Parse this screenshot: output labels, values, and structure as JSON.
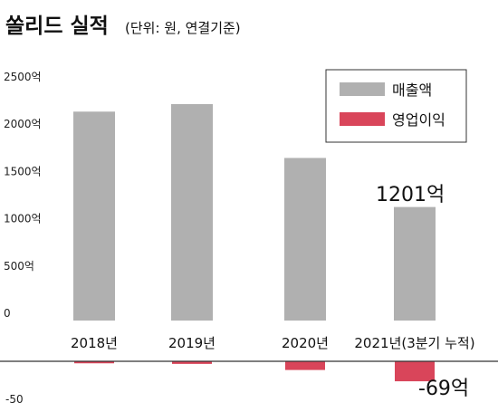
{
  "colors": {
    "sales": "#b0b0b0",
    "op": "#d9455a",
    "axis": "#333333"
  },
  "chart_data": {
    "type": "bar",
    "title": "쏠리드 실적",
    "subtitle": "(단위: 원, 연결기준)",
    "categories": [
      "2018년",
      "2019년",
      "2020년",
      "2021년(3분기 누적)"
    ],
    "series": [
      {
        "name": "매출액",
        "values": [
          2210,
          2290,
          1720,
          1201
        ]
      },
      {
        "name": "영업이익",
        "values": [
          -7,
          -9,
          -30,
          -69
        ]
      }
    ],
    "top_yticks": [
      "2500억",
      "2000억",
      "1500억",
      "1000억",
      "500억",
      "0"
    ],
    "top_ylim": [
      0,
      2500
    ],
    "bottom_ytick": "-50",
    "bottom_ylim": [
      -80,
      0
    ],
    "annotations": {
      "sales_2021": "1201억",
      "op_2021": "-69억"
    },
    "legend_placement": "top-right",
    "grid": false
  }
}
